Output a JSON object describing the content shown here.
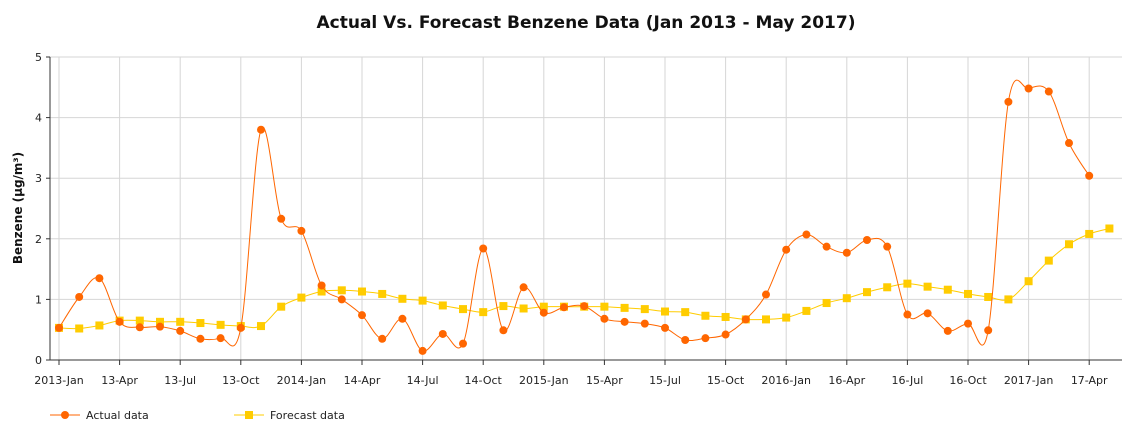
{
  "chart_data": {
    "type": "line",
    "title": "Actual Vs. Forecast Benzene Data (Jan 2013 - May 2017)",
    "xlabel": "",
    "ylabel": "Benzene (µg/m³)",
    "ylim": [
      0,
      5
    ],
    "yticks": [
      0,
      1,
      2,
      3,
      4,
      5
    ],
    "grid": true,
    "legend_position": "bottom-left",
    "x": [
      "2013-Jan",
      "2013-Feb",
      "2013-Mar",
      "2013-Apr",
      "2013-May",
      "2013-Jun",
      "2013-Jul",
      "2013-Aug",
      "2013-Sep",
      "2013-Oct",
      "2013-Nov",
      "2013-Dec",
      "2014-Jan",
      "2014-Feb",
      "2014-Mar",
      "2014-Apr",
      "2014-May",
      "2014-Jun",
      "2014-Jul",
      "2014-Aug",
      "2014-Sep",
      "2014-Oct",
      "2014-Nov",
      "2014-Dec",
      "2015-Jan",
      "2015-Feb",
      "2015-Mar",
      "2015-Apr",
      "2015-May",
      "2015-Jun",
      "2015-Jul",
      "2015-Aug",
      "2015-Sep",
      "2015-Oct",
      "2015-Nov",
      "2015-Dec",
      "2016-Jan",
      "2016-Feb",
      "2016-Mar",
      "2016-Apr",
      "2016-May",
      "2016-Jun",
      "2016-Jul",
      "2016-Aug",
      "2016-Sep",
      "2016-Oct",
      "2016-Nov",
      "2016-Dec",
      "2017-Jan",
      "2017-Feb",
      "2017-Mar",
      "2017-Apr",
      "2017-May"
    ],
    "tick_labels": [
      {
        "x": "2013-Jan",
        "label": "2013-Jan"
      },
      {
        "x": "2013-Apr",
        "label": "13-Apr"
      },
      {
        "x": "2013-Jul",
        "label": "13-Jul"
      },
      {
        "x": "2013-Oct",
        "label": "13-Oct"
      },
      {
        "x": "2014-Jan",
        "label": "2014-Jan"
      },
      {
        "x": "2014-Apr",
        "label": "14-Apr"
      },
      {
        "x": "2014-Jul",
        "label": "14-Jul"
      },
      {
        "x": "2014-Oct",
        "label": "14-Oct"
      },
      {
        "x": "2015-Jan",
        "label": "2015-Jan"
      },
      {
        "x": "2015-Apr",
        "label": "15-Apr"
      },
      {
        "x": "2015-Jul",
        "label": "15-Jul"
      },
      {
        "x": "2015-Oct",
        "label": "15-Oct"
      },
      {
        "x": "2016-Jan",
        "label": "2016-Jan"
      },
      {
        "x": "2016-Apr",
        "label": "16-Apr"
      },
      {
        "x": "2016-Jul",
        "label": "16-Jul"
      },
      {
        "x": "2016-Oct",
        "label": "16-Oct"
      },
      {
        "x": "2017-Jan",
        "label": "2017-Jan"
      },
      {
        "x": "2017-Apr",
        "label": "17-Apr"
      }
    ],
    "series": [
      {
        "name": "Actual data",
        "color": "#ff6600",
        "marker": "circle",
        "x": [
          "2013-Jan",
          "2013-Feb",
          "2013-Mar",
          "2013-Apr",
          "2013-May",
          "2013-Jun",
          "2013-Jul",
          "2013-Aug",
          "2013-Sep",
          "2013-Oct",
          "2013-Nov",
          "2013-Dec",
          "2014-Jan",
          "2014-Feb",
          "2014-Mar",
          "2014-Apr",
          "2014-May",
          "2014-Jun",
          "2014-Jul",
          "2014-Aug",
          "2014-Sep",
          "2014-Oct",
          "2014-Nov",
          "2014-Dec",
          "2015-Jan",
          "2015-Feb",
          "2015-Mar",
          "2015-Apr",
          "2015-May",
          "2015-Jun",
          "2015-Jul",
          "2015-Aug",
          "2015-Sep",
          "2015-Oct",
          "2015-Nov",
          "2015-Dec",
          "2016-Jan",
          "2016-Feb",
          "2016-Mar",
          "2016-Apr",
          "2016-May",
          "2016-Jun",
          "2016-Jul",
          "2016-Aug",
          "2016-Sep",
          "2016-Oct",
          "2016-Nov",
          "2016-Dec",
          "2017-Jan",
          "2017-Feb",
          "2017-Mar",
          "2017-Apr"
        ],
        "values": [
          0.53,
          1.04,
          1.35,
          0.63,
          0.54,
          0.55,
          0.48,
          0.35,
          0.36,
          0.53,
          3.8,
          2.33,
          2.13,
          1.23,
          1.0,
          0.74,
          0.35,
          0.68,
          0.15,
          0.43,
          0.27,
          1.84,
          0.49,
          1.2,
          0.78,
          0.87,
          0.89,
          0.68,
          0.63,
          0.6,
          0.53,
          0.33,
          0.36,
          0.42,
          0.67,
          1.08,
          1.82,
          2.07,
          1.87,
          1.77,
          1.98,
          1.87,
          0.75,
          0.77,
          0.48,
          0.6,
          0.49,
          4.26,
          4.48,
          4.43,
          3.58,
          3.04
        ]
      },
      {
        "name": "Forecast data",
        "color": "#ffcc00",
        "marker": "square",
        "x": [
          "2013-Jan",
          "2013-Feb",
          "2013-Mar",
          "2013-Apr",
          "2013-May",
          "2013-Jun",
          "2013-Jul",
          "2013-Aug",
          "2013-Sep",
          "2013-Oct",
          "2013-Nov",
          "2013-Dec",
          "2014-Jan",
          "2014-Feb",
          "2014-Mar",
          "2014-Apr",
          "2014-May",
          "2014-Jun",
          "2014-Jul",
          "2014-Aug",
          "2014-Sep",
          "2014-Oct",
          "2014-Nov",
          "2014-Dec",
          "2015-Jan",
          "2015-Feb",
          "2015-Mar",
          "2015-Apr",
          "2015-May",
          "2015-Jun",
          "2015-Jul",
          "2015-Aug",
          "2015-Sep",
          "2015-Oct",
          "2015-Nov",
          "2015-Dec",
          "2016-Jan",
          "2016-Feb",
          "2016-Mar",
          "2016-Apr",
          "2016-May",
          "2016-Jun",
          "2016-Jul",
          "2016-Aug",
          "2016-Sep",
          "2016-Oct",
          "2016-Nov",
          "2016-Dec",
          "2017-Jan",
          "2017-Feb",
          "2017-Mar",
          "2017-Apr",
          "2017-May"
        ],
        "values": [
          0.53,
          0.52,
          0.57,
          0.65,
          0.65,
          0.63,
          0.63,
          0.61,
          0.58,
          0.56,
          0.56,
          0.88,
          1.03,
          1.13,
          1.15,
          1.13,
          1.09,
          1.01,
          0.98,
          0.9,
          0.84,
          0.79,
          0.89,
          0.85,
          0.88,
          0.88,
          0.88,
          0.88,
          0.86,
          0.84,
          0.8,
          0.79,
          0.73,
          0.71,
          0.67,
          0.67,
          0.7,
          0.81,
          0.94,
          1.02,
          1.12,
          1.2,
          1.26,
          1.21,
          1.16,
          1.09,
          1.04,
          1.0,
          1.3,
          1.64,
          1.91,
          2.08,
          2.17
        ]
      }
    ]
  }
}
